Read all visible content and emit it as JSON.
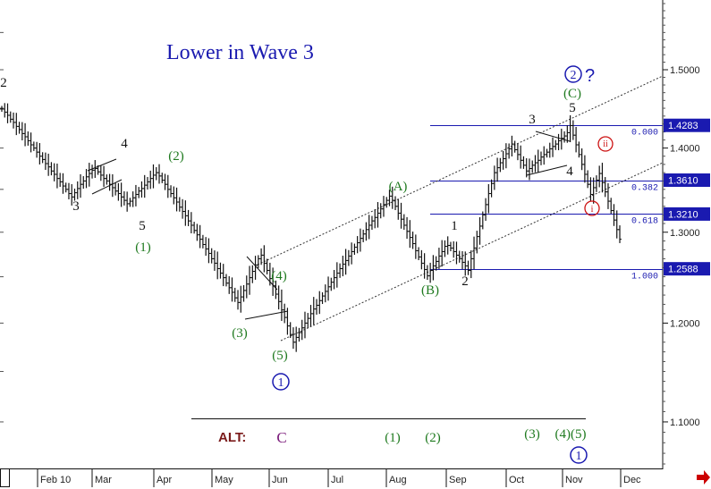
{
  "chart_data": {
    "type": "ohlc",
    "title": "Lower in Wave 3",
    "ylim": [
      1.055,
      1.595
    ],
    "yticks": [
      1.1,
      1.2,
      1.3,
      1.4,
      1.5
    ],
    "ytick_labels": [
      "1.1000",
      "1.2000",
      "1.3000",
      "1.4000",
      "1.5000"
    ],
    "x_labels": [
      "Feb 10",
      "Mar",
      "Apr",
      "May",
      "Jun",
      "Jul",
      "Aug",
      "Sep",
      "Oct",
      "Nov",
      "Dec"
    ],
    "fib_levels": [
      {
        "ratio": "0.000",
        "price": 1.4283,
        "label": "1.4283"
      },
      {
        "ratio": "0.382",
        "price": 1.361,
        "label": "1.3610"
      },
      {
        "ratio": "0.618",
        "price": 1.321,
        "label": "1.3210"
      },
      {
        "ratio": "1.000",
        "price": 1.2588,
        "label": "1.2588"
      }
    ],
    "series": [
      {
        "values": [
          1.449,
          1.445,
          1.441,
          1.436,
          1.432,
          1.427,
          1.423,
          1.418,
          1.414,
          1.409,
          1.404,
          1.4,
          1.395,
          1.39,
          1.386,
          1.381,
          1.377,
          1.372,
          1.368,
          1.363,
          1.359,
          1.354,
          1.35,
          1.345,
          1.341,
          1.346,
          1.351,
          1.356,
          1.36,
          1.365,
          1.369,
          1.373,
          1.375,
          1.371,
          1.367,
          1.363,
          1.36,
          1.356,
          1.352,
          1.348,
          1.345,
          1.341,
          1.337,
          1.333,
          1.336,
          1.34,
          1.344,
          1.348,
          1.351,
          1.355,
          1.359,
          1.363,
          1.367,
          1.37,
          1.366,
          1.361,
          1.356,
          1.35,
          1.345,
          1.34,
          1.335,
          1.329,
          1.324,
          1.319,
          1.313,
          1.308,
          1.302,
          1.297,
          1.292,
          1.286,
          1.281,
          1.276,
          1.27,
          1.265,
          1.259,
          1.254,
          1.249,
          1.243,
          1.238,
          1.233,
          1.227,
          1.222,
          1.228,
          1.235,
          1.242,
          1.249,
          1.256,
          1.263,
          1.27,
          1.274,
          1.265,
          1.257,
          1.248,
          1.24,
          1.231,
          1.223,
          1.214,
          1.206,
          1.197,
          1.188,
          1.18,
          1.185,
          1.19,
          1.195,
          1.2,
          1.205,
          1.21,
          1.215,
          1.219,
          1.224,
          1.229,
          1.234,
          1.239,
          1.244,
          1.249,
          1.254,
          1.259,
          1.264,
          1.268,
          1.273,
          1.278,
          1.283,
          1.288,
          1.293,
          1.298,
          1.303,
          1.308,
          1.313,
          1.317,
          1.322,
          1.327,
          1.332,
          1.337,
          1.342,
          1.337,
          1.33,
          1.322,
          1.315,
          1.308,
          1.301,
          1.294,
          1.287,
          1.279,
          1.272,
          1.265,
          1.258,
          1.251,
          1.257,
          1.262,
          1.267,
          1.273,
          1.278,
          1.284,
          1.285,
          1.282,
          1.278,
          1.274,
          1.27,
          1.266,
          1.262,
          1.257,
          1.27,
          1.282,
          1.295,
          1.307,
          1.32,
          1.332,
          1.345,
          1.357,
          1.37,
          1.376,
          1.382,
          1.387,
          1.393,
          1.399,
          1.405,
          1.398,
          1.392,
          1.385,
          1.379,
          1.372,
          1.375,
          1.379,
          1.382,
          1.385,
          1.389,
          1.392,
          1.395,
          1.399,
          1.402,
          1.405,
          1.409,
          1.412,
          1.415,
          1.419,
          1.428,
          1.416,
          1.404,
          1.392,
          1.38,
          1.368,
          1.356,
          1.344,
          1.352,
          1.361,
          1.369,
          1.358,
          1.347,
          1.336,
          1.325,
          1.314,
          1.303,
          1.292
        ]
      }
    ]
  },
  "labels": {
    "wave_2_circled": "2",
    "wave_2_question": "?",
    "wave_C_top": "(C)",
    "wave_5_top": "5",
    "wave_3_top": "3",
    "wave_4_upper": "4",
    "wave_ii": "ii",
    "wave_i": "i",
    "wave_A": "(A)",
    "wave_1_mid": "1",
    "wave_2_mid": "2",
    "wave_B": "(B)",
    "wave_2_left": "2",
    "wave_4_left": "4",
    "wave_3_left": "3",
    "wave_5_left": "5",
    "wave_1_paren": "(1)",
    "wave_2_paren": "(2)",
    "wave_4_paren": "(4)",
    "wave_3_paren": "(3)",
    "wave_5_paren": "(5)",
    "wave_1_circled": "1",
    "alt_prefix": "ALT:",
    "alt_c": "C",
    "alt_1": "(1)",
    "alt_2": "(2)",
    "alt_3": "(3)",
    "alt_4_5": "(4)(5)",
    "alt_circled_1": "1"
  },
  "colors": {
    "price": "#111111",
    "fib_line": "#1a1ab0",
    "channel": "#333333",
    "wave_green": "#1f7a1f",
    "wave_blue": "#1a1ab0",
    "wave_red": "#cc1111",
    "alt_nav_arrow": "#cc0000"
  },
  "icons": {
    "nav_arrow": "red-arrow-right-icon"
  }
}
